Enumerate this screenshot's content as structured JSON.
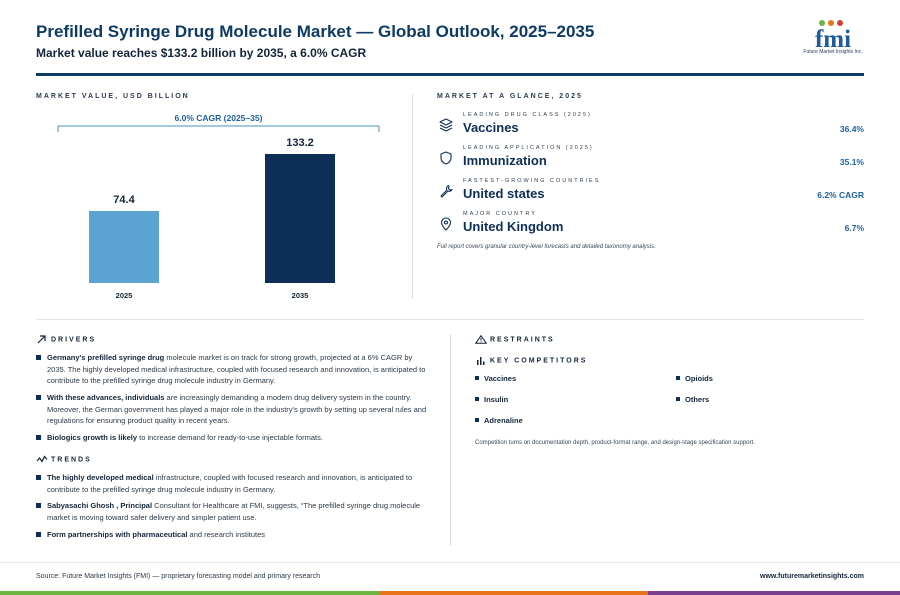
{
  "header": {
    "title": "Prefilled Syringe Drug Molecule Market — Global Outlook, 2025–2035",
    "subtitle": "Market value reaches $133.2 billion by 2035, a 6.0% CAGR"
  },
  "logo": {
    "wordmark": "fmi",
    "tagline": "Future Market Insights Inc."
  },
  "chart_section": {
    "label": "MARKET VALUE, USD BILLION"
  },
  "chart_data": {
    "type": "bar",
    "categories": [
      "2025",
      "2035"
    ],
    "values": [
      74.4,
      133.2
    ],
    "value_labels": [
      "74.4",
      "133.2"
    ],
    "colors": [
      "#5ba3d0",
      "#0d2f57"
    ],
    "annotation": "6.0% CAGR (2025–35)",
    "title": "",
    "xlabel": "",
    "ylabel": "",
    "ylim": [
      0,
      133.2
    ],
    "grid": false
  },
  "glance": {
    "label": "MARKET AT A GLANCE, 2025",
    "rows": [
      {
        "caption": "LEADING DRUG CLASS (2025)",
        "value": "Vaccines",
        "metric": "36.4%",
        "icon": "layers-icon"
      },
      {
        "caption": "LEADING APPLICATION (2025)",
        "value": "Immunization",
        "metric": "35.1%",
        "icon": "shield-icon"
      },
      {
        "caption": "FASTEST-GROWING COUNTRIES",
        "value": "United states",
        "metric": "6.2% CAGR",
        "icon": "wrench-icon"
      },
      {
        "caption": "MAJOR COUNTRY",
        "value": "United Kingdom",
        "metric": "6.7%",
        "icon": "location-pin-icon"
      }
    ],
    "note": "Full report covers granular country-level forecasts and detailed taxonomy analysis."
  },
  "drivers": {
    "label": "DRIVERS",
    "items": [
      {
        "bold": "Germany's prefilled syringe drug",
        "text": " molecule market is on track for strong growth, projected at a 6% CAGR by 2035. The highly developed medical infrastructure, coupled with focused research and innovation, is anticipated to contribute to the prefilled syringe drug molecule industry in Germany."
      },
      {
        "bold": "With these advances, individuals",
        "text": " are increasingly demanding a modern drug delivery system in the country. Moreover, the German government has played a major role in the industry's growth by setting up several rules and regulations for ensuring product quality in recent years."
      },
      {
        "bold": "Biologics growth is likely",
        "text": " to increase demand for ready-to-use injectable formats."
      }
    ]
  },
  "trends": {
    "label": "TRENDS",
    "items": [
      {
        "bold": "The highly developed medical",
        "text": " infrastructure, coupled with focused research and innovation, is anticipated to contribute to the prefilled syringe drug molecule industry in Germany."
      },
      {
        "bold": "Sabyasachi Ghosh , Principal",
        "text": " Consultant for Healthcare at FMI, suggests, “The prefilled syringe drug molecule market is moving toward safer delivery and simpler patient use."
      },
      {
        "bold": "Form partnerships with pharmaceutical",
        "text": " and research institutes"
      }
    ]
  },
  "restraints": {
    "label": "RESTRAINTS"
  },
  "competitors": {
    "label": "KEY COMPETITORS",
    "items": [
      "Vaccines",
      "Opioids",
      "Insulin",
      "Others",
      "Adrenaline"
    ],
    "note": "Competition turns on documentation depth, product-format range, and design-stage specification support."
  },
  "footer": {
    "source": "Source: Future Market Insights (FMI) — proprietary forecasting model and primary research",
    "website": "www.futuremarketinsights.com"
  },
  "colors": {
    "primary": "#0d3b66",
    "bar_light": "#5ba3d0",
    "bar_dark": "#0d2f57",
    "accent_green": "#6db33f",
    "accent_orange": "#e8731a",
    "accent_purple": "#7a3e8e"
  }
}
